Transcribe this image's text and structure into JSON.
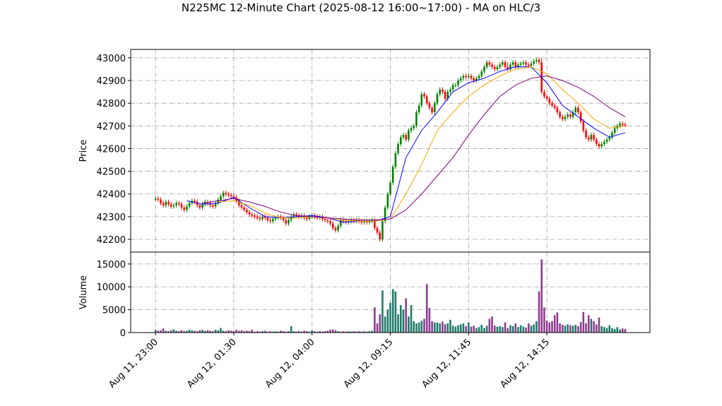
{
  "chart_data": [
    {
      "type": "candlestick",
      "title": "N225MC 12-Minute Chart (2025-08-12 16:00~17:00) - MA on HLC/3",
      "ylabel": "Price",
      "open": [
        42375,
        42380,
        42375,
        42360,
        42350,
        42365,
        42355,
        42345,
        42350,
        42360,
        42355,
        42340,
        42330,
        42345,
        42360,
        42370,
        42365,
        42350,
        42340,
        42355,
        42365,
        42360,
        42350,
        42345,
        42360,
        42375,
        42390,
        42405,
        42400,
        42395,
        42390,
        42385,
        42370,
        42350,
        42340,
        42330,
        42320,
        42310,
        42305,
        42300,
        42295,
        42290,
        42300,
        42295,
        42285,
        42280,
        42290,
        42295,
        42300,
        42295,
        42285,
        42270,
        42285,
        42300,
        42310,
        42305,
        42300,
        42305,
        42295,
        42290,
        42300,
        42305,
        42300,
        42295,
        42300,
        42290,
        42285,
        42280,
        42270,
        42250,
        42240,
        42260,
        42285,
        42280,
        42275,
        42280,
        42285,
        42280,
        42285,
        42280,
        42275,
        42280,
        42275,
        42280,
        42285,
        42250,
        42230,
        42200,
        42280,
        42340,
        42400,
        42450,
        42520,
        42580,
        42620,
        42650,
        42660,
        42640,
        42680,
        42690,
        42700,
        42760,
        42790,
        42840,
        42830,
        42800,
        42780,
        42760,
        42800,
        42840,
        42860,
        42850,
        42820,
        42850,
        42860,
        42880,
        42880,
        42900,
        42910,
        42920,
        42915,
        42920,
        42910,
        42900,
        42910,
        42920,
        42940,
        42960,
        42980,
        42970,
        42960,
        42950,
        42960,
        42970,
        42980,
        42960,
        42950,
        42970,
        42980,
        42960,
        42970,
        42975,
        42980,
        42970,
        42965,
        42975,
        42985,
        42990,
        42980,
        42850,
        42830,
        42820,
        42800,
        42790,
        42780,
        42760,
        42740,
        42730,
        42740,
        42750,
        42740,
        42760,
        42780,
        42760,
        42720,
        42680,
        42650,
        42640,
        42660,
        42640,
        42620,
        42610,
        42620,
        42630,
        42640,
        42650,
        42670,
        42690,
        42700,
        42710,
        42705
      ],
      "high": [
        42390,
        42390,
        42385,
        42370,
        42375,
        42375,
        42365,
        42360,
        42370,
        42370,
        42365,
        42350,
        42355,
        42370,
        42380,
        42380,
        42375,
        42360,
        42365,
        42375,
        42375,
        42370,
        42360,
        42370,
        42385,
        42400,
        42415,
        42415,
        42410,
        42405,
        42400,
        42395,
        42380,
        42360,
        42350,
        42340,
        42330,
        42320,
        42315,
        42310,
        42305,
        42310,
        42310,
        42305,
        42295,
        42300,
        42305,
        42310,
        42310,
        42305,
        42295,
        42295,
        42310,
        42320,
        42320,
        42315,
        42315,
        42315,
        42305,
        42310,
        42315,
        42315,
        42310,
        42310,
        42310,
        42300,
        42295,
        42290,
        42280,
        42260,
        42270,
        42295,
        42295,
        42290,
        42290,
        42295,
        42295,
        42295,
        42295,
        42290,
        42290,
        42290,
        42290,
        42295,
        42295,
        42260,
        42240,
        42290,
        42350,
        42410,
        42460,
        42530,
        42590,
        42630,
        42660,
        42670,
        42670,
        42690,
        42700,
        42710,
        42770,
        42800,
        42850,
        42850,
        42840,
        42810,
        42790,
        42810,
        42850,
        42870,
        42870,
        42860,
        42860,
        42870,
        42890,
        42890,
        42910,
        42920,
        42930,
        42930,
        42930,
        42930,
        42920,
        42920,
        42930,
        42950,
        42970,
        42990,
        42990,
        42980,
        42970,
        42970,
        42980,
        42990,
        42990,
        42980,
        42980,
        42990,
        42990,
        42980,
        42985,
        42990,
        42990,
        42980,
        42985,
        42995,
        43000,
        43000,
        43000,
        42860,
        42840,
        42830,
        42810,
        42800,
        42790,
        42770,
        42750,
        42750,
        42760,
        42760,
        42770,
        42790,
        42790,
        42770,
        42730,
        42690,
        42660,
        42670,
        42670,
        42650,
        42630,
        42630,
        42640,
        42650,
        42660,
        42680,
        42700,
        42710,
        42720,
        42720,
        42715
      ],
      "low": [
        42365,
        42365,
        42350,
        42340,
        42340,
        42345,
        42335,
        42335,
        42340,
        42345,
        42330,
        42320,
        42320,
        42335,
        42350,
        42355,
        42340,
        42330,
        42330,
        42345,
        42350,
        42340,
        42335,
        42335,
        42350,
        42365,
        42380,
        42390,
        42385,
        42380,
        42375,
        42360,
        42340,
        42330,
        42320,
        42310,
        42300,
        42295,
        42290,
        42285,
        42280,
        42280,
        42285,
        42275,
        42270,
        42270,
        42280,
        42285,
        42285,
        42275,
        42260,
        42260,
        42275,
        42290,
        42295,
        42290,
        42290,
        42285,
        42280,
        42280,
        42290,
        42290,
        42285,
        42285,
        42280,
        42275,
        42270,
        42260,
        42240,
        42230,
        42230,
        42250,
        42270,
        42265,
        42265,
        42270,
        42270,
        42270,
        42270,
        42265,
        42265,
        42265,
        42265,
        42270,
        42240,
        42220,
        42190,
        42190,
        42270,
        42330,
        42390,
        42440,
        42510,
        42570,
        42610,
        42640,
        42630,
        42630,
        42670,
        42680,
        42690,
        42750,
        42780,
        42820,
        42790,
        42770,
        42750,
        42750,
        42790,
        42830,
        42840,
        42810,
        42810,
        42840,
        42850,
        42870,
        42870,
        42890,
        42900,
        42905,
        42905,
        42900,
        42890,
        42890,
        42900,
        42910,
        42930,
        42950,
        42960,
        42950,
        42940,
        42940,
        42950,
        42960,
        42950,
        42940,
        42940,
        42960,
        42950,
        42950,
        42960,
        42965,
        42960,
        42955,
        42955,
        42965,
        42975,
        42970,
        42840,
        42820,
        42810,
        42790,
        42780,
        42770,
        42750,
        42730,
        42720,
        42720,
        42730,
        42730,
        42730,
        42750,
        42750,
        42710,
        42670,
        42640,
        42630,
        42630,
        42630,
        42610,
        42600,
        42600,
        42610,
        42620,
        42630,
        42640,
        42660,
        42680,
        42690,
        42695,
        42695
      ],
      "close": [
        42380,
        42375,
        42360,
        42350,
        42365,
        42355,
        42345,
        42350,
        42360,
        42355,
        42340,
        42330,
        42345,
        42360,
        42370,
        42365,
        42350,
        42340,
        42355,
        42365,
        42360,
        42350,
        42345,
        42360,
        42375,
        42390,
        42405,
        42400,
        42395,
        42390,
        42385,
        42370,
        42350,
        42340,
        42330,
        42320,
        42310,
        42305,
        42300,
        42295,
        42290,
        42300,
        42295,
        42285,
        42280,
        42290,
        42295,
        42300,
        42295,
        42285,
        42270,
        42285,
        42300,
        42310,
        42305,
        42300,
        42305,
        42295,
        42290,
        42300,
        42305,
        42300,
        42295,
        42300,
        42290,
        42285,
        42280,
        42270,
        42250,
        42240,
        42260,
        42285,
        42280,
        42275,
        42280,
        42285,
        42280,
        42285,
        42280,
        42275,
        42280,
        42275,
        42280,
        42285,
        42250,
        42230,
        42200,
        42280,
        42340,
        42400,
        42450,
        42520,
        42580,
        42620,
        42650,
        42660,
        42640,
        42680,
        42690,
        42700,
        42760,
        42790,
        42840,
        42830,
        42800,
        42780,
        42760,
        42800,
        42840,
        42860,
        42850,
        42820,
        42850,
        42860,
        42880,
        42880,
        42900,
        42910,
        42920,
        42915,
        42920,
        42910,
        42900,
        42910,
        42920,
        42940,
        42960,
        42980,
        42970,
        42960,
        42950,
        42960,
        42970,
        42980,
        42960,
        42950,
        42970,
        42980,
        42960,
        42970,
        42975,
        42980,
        42970,
        42965,
        42975,
        42985,
        42990,
        42980,
        42850,
        42830,
        42820,
        42800,
        42790,
        42780,
        42760,
        42740,
        42730,
        42740,
        42750,
        42740,
        42760,
        42780,
        42760,
        42720,
        42680,
        42650,
        42640,
        42660,
        42640,
        42620,
        42610,
        42620,
        42630,
        42640,
        42650,
        42670,
        42690,
        42700,
        42710,
        42705,
        42700
      ],
      "up_color": "#008000",
      "down_color": "#ff0000",
      "series": [
        {
          "color": "#0000ff",
          "x": [
            12,
            18,
            24,
            30,
            36,
            42,
            48,
            54,
            60,
            66,
            72,
            78,
            84,
            90,
            96,
            102,
            108,
            114,
            120,
            126,
            132,
            138,
            144,
            150,
            156,
            162,
            168,
            174,
            180
          ],
          "values": [
            42370,
            42355,
            42360,
            42385,
            42340,
            42300,
            42295,
            42300,
            42305,
            42295,
            42275,
            42280,
            42280,
            42300,
            42560,
            42680,
            42760,
            42850,
            42890,
            42910,
            42940,
            42960,
            42960,
            42890,
            42790,
            42740,
            42690,
            42650,
            42670
          ]
        },
        {
          "color": "#ffa500",
          "x": [
            24,
            30,
            36,
            42,
            48,
            54,
            60,
            66,
            72,
            78,
            84,
            90,
            96,
            102,
            108,
            114,
            120,
            126,
            132,
            138,
            144,
            150,
            156,
            162,
            168,
            174,
            180
          ],
          "values": [
            42365,
            42370,
            42350,
            42315,
            42295,
            42295,
            42300,
            42295,
            42285,
            42280,
            42280,
            42290,
            42400,
            42530,
            42680,
            42760,
            42830,
            42880,
            42920,
            42950,
            42960,
            42930,
            42860,
            42800,
            42730,
            42690,
            42700
          ]
        },
        {
          "color": "#800080",
          "x": [
            18,
            24,
            30,
            36,
            42,
            48,
            54,
            60,
            66,
            72,
            78,
            84,
            90,
            96,
            102,
            108,
            114,
            120,
            126,
            132,
            138,
            144,
            150,
            156,
            162,
            168,
            174,
            180
          ],
          "values": [
            42360,
            42370,
            42380,
            42365,
            42345,
            42320,
            42305,
            42300,
            42295,
            42290,
            42285,
            42285,
            42290,
            42330,
            42400,
            42480,
            42560,
            42660,
            42750,
            42830,
            42880,
            42910,
            42920,
            42900,
            42870,
            42830,
            42780,
            42740
          ]
        }
      ],
      "xlim": [
        -9.5,
        189.5
      ],
      "ylim": [
        42144,
        43037
      ],
      "yticks": [
        42200,
        42300,
        42400,
        42500,
        42600,
        42700,
        42800,
        42900,
        43000
      ],
      "grid": true
    },
    {
      "type": "bar",
      "ylabel": "Volume",
      "values": [
        600,
        400,
        500,
        900,
        400,
        300,
        500,
        700,
        400,
        300,
        500,
        300,
        400,
        600,
        500,
        400,
        300,
        500,
        600,
        400,
        500,
        400,
        300,
        600,
        500,
        1000,
        400,
        300,
        500,
        400,
        300,
        600,
        400,
        500,
        300,
        400,
        300,
        600,
        200,
        300,
        200,
        300,
        400,
        200,
        300,
        200,
        300,
        200,
        400,
        300,
        200,
        300,
        1400,
        300,
        200,
        300,
        200,
        400,
        300,
        200,
        500,
        300,
        200,
        300,
        200,
        300,
        400,
        600,
        700,
        500,
        300,
        200,
        300,
        200,
        300,
        200,
        300,
        200,
        300,
        200,
        300,
        200,
        300,
        400,
        5500,
        2000,
        4000,
        9200,
        3500,
        5000,
        6500,
        9500,
        9000,
        4000,
        6000,
        5000,
        7500,
        3500,
        6000,
        2500,
        2000,
        2200,
        2600,
        3000,
        10600,
        5400,
        2500,
        2200,
        2200,
        2000,
        2400,
        1800,
        2000,
        2800,
        1500,
        1300,
        1600,
        1800,
        2000,
        1400,
        2200,
        1300,
        1500,
        1000,
        1200,
        1700,
        1000,
        1500,
        3000,
        3500,
        1500,
        1300,
        1400,
        1200,
        2200,
        1000,
        1600,
        1400,
        2000,
        1200,
        1600,
        1300,
        1100,
        2000,
        1500,
        1800,
        2500,
        9000,
        16000,
        5500,
        2600,
        2200,
        2500,
        3800,
        4400,
        2000,
        1700,
        1500,
        1800,
        1600,
        1500,
        1700,
        1400,
        2300,
        4500,
        2000,
        3800,
        3000,
        2500,
        1800,
        3300,
        1400,
        1200,
        1000,
        1600,
        1000,
        800,
        1200,
        700,
        900,
        800
      ],
      "up_color": "#1f7a6a",
      "down_color": "#8e3b8e",
      "xlim": [
        -9.5,
        189.5
      ],
      "ylim": [
        0,
        17600
      ],
      "yticks": [
        0,
        5000,
        10000,
        15000
      ],
      "grid": true,
      "xticks": [
        {
          "value": 0,
          "label": "Aug 11, 23:00"
        },
        {
          "value": 30,
          "label": "Aug 12, 01:30"
        },
        {
          "value": 60,
          "label": "Aug 12, 04:00"
        },
        {
          "value": 90,
          "label": "Aug 12, 09:15"
        },
        {
          "value": 120,
          "label": "Aug 12, 11:45"
        },
        {
          "value": 150,
          "label": "Aug 12, 14:15"
        }
      ]
    }
  ]
}
